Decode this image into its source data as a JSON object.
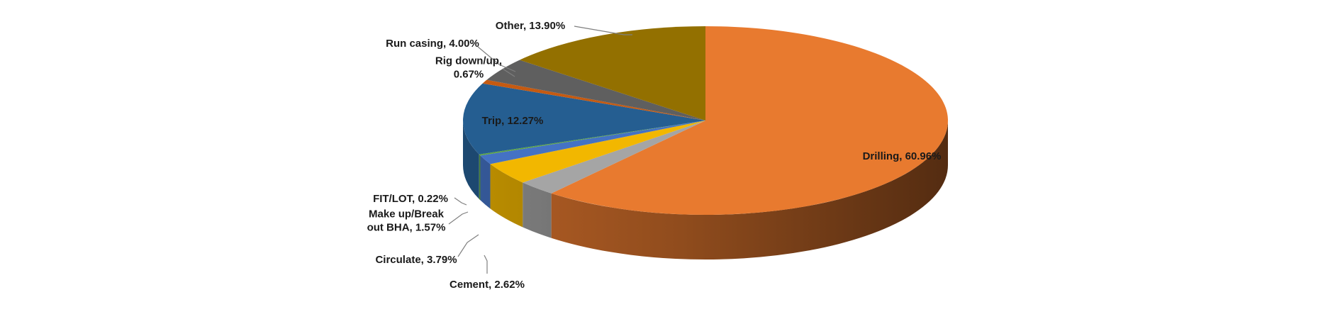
{
  "chart_data": {
    "type": "pie",
    "style": "3d",
    "title": "",
    "unit": "%",
    "slices": [
      {
        "name": "Drilling",
        "value": 60.96,
        "label": "Drilling, 60.96%",
        "color": "#E87A2F",
        "label_placement": "inside"
      },
      {
        "name": "Cement",
        "value": 2.62,
        "label": "Cement, 2.62%",
        "color": "#A5A5A5",
        "label_placement": "outside"
      },
      {
        "name": "Circulate",
        "value": 3.79,
        "label": "Circulate, 3.79%",
        "color": "#F2B700",
        "label_placement": "outside"
      },
      {
        "name": "Make up/Break out BHA",
        "value": 1.57,
        "label_lines": [
          "Make up/Break",
          "out BHA, 1.57%"
        ],
        "color": "#4472C4",
        "label_placement": "outside"
      },
      {
        "name": "FIT/LOT",
        "value": 0.22,
        "label": "FIT/LOT, 0.22%",
        "color": "#5BA345",
        "label_placement": "outside"
      },
      {
        "name": "Trip",
        "value": 12.27,
        "label": "Trip, 12.27%",
        "color": "#255E91",
        "label_placement": "inside"
      },
      {
        "name": "Rig down/up",
        "value": 0.67,
        "label_lines": [
          "Rig down/up,",
          "0.67%"
        ],
        "color": "#C55A11",
        "label_placement": "outside"
      },
      {
        "name": "Run casing",
        "value": 4.0,
        "label": "Run casing, 4.00%",
        "color": "#5F5F5F",
        "label_placement": "outside"
      },
      {
        "name": "Other",
        "value": 13.9,
        "label": "Other, 13.90%",
        "color": "#937000",
        "label_placement": "outside"
      }
    ]
  }
}
